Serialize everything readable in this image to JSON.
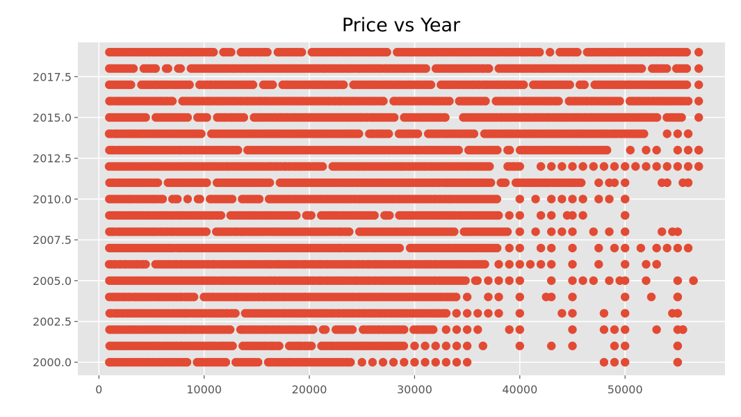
{
  "chart_data": {
    "type": "scatter",
    "title": "Price vs Year",
    "xlabel": "",
    "ylabel": "",
    "xlim": [
      -2000,
      59500
    ],
    "ylim": [
      1999.2,
      2019.6
    ],
    "grid": true,
    "x_ticks": [
      0,
      10000,
      20000,
      30000,
      40000,
      50000
    ],
    "x_tick_labels": [
      "0",
      "10000",
      "20000",
      "30000",
      "40000",
      "50000"
    ],
    "y_ticks": [
      2000.0,
      2002.5,
      2005.0,
      2007.5,
      2010.0,
      2012.5,
      2015.0,
      2017.5
    ],
    "y_tick_labels": [
      "2000.0",
      "2002.5",
      "2005.0",
      "2007.5",
      "2010.0",
      "2012.5",
      "2015.0",
      "2017.5"
    ],
    "colors": {
      "marker": "#E24A33",
      "plot_background": "#E5E5E5",
      "grid": "#FFFFFF"
    },
    "rows": [
      {
        "year": 2019,
        "x_min": 1000,
        "x_max": 57000,
        "solid_to": 56000,
        "extra_x": []
      },
      {
        "year": 2018,
        "x_min": 1000,
        "x_max": 57000,
        "solid_to": 56000,
        "extra_x": []
      },
      {
        "year": 2017,
        "x_min": 1000,
        "x_max": 57000,
        "solid_to": 56000,
        "extra_x": []
      },
      {
        "year": 2016,
        "x_min": 1000,
        "x_max": 57000,
        "solid_to": 56000,
        "extra_x": []
      },
      {
        "year": 2015,
        "x_min": 1000,
        "x_max": 57000,
        "solid_to": 56000,
        "extra_x": []
      },
      {
        "year": 2014,
        "x_min": 1000,
        "x_max": 56000,
        "solid_to": 52000,
        "extra_x": [
          54000,
          55000,
          56000
        ]
      },
      {
        "year": 2013,
        "x_min": 1000,
        "x_max": 57000,
        "solid_to": 48500,
        "extra_x": [
          50500,
          52000,
          53000,
          55000,
          56000,
          57000
        ]
      },
      {
        "year": 2012,
        "x_min": 1000,
        "x_max": 57000,
        "solid_to": 40000,
        "extra_x": [
          42000,
          43000,
          44000,
          45000,
          46000,
          47000,
          48000,
          49000,
          50000,
          51000,
          52000,
          53000,
          54000,
          55000,
          56000,
          57000
        ]
      },
      {
        "year": 2011,
        "x_min": 1000,
        "x_max": 56000,
        "solid_to": 46000,
        "extra_x": [
          47500,
          48500,
          49000,
          50000,
          53500,
          54000,
          55500,
          56000
        ]
      },
      {
        "year": 2010,
        "x_min": 1000,
        "x_max": 50000,
        "solid_to": 38000,
        "extra_x": [
          40000,
          41500,
          43000,
          44000,
          45000,
          46000,
          47500,
          48500,
          50000
        ]
      },
      {
        "year": 2009,
        "x_min": 1000,
        "x_max": 50000,
        "solid_to": 38000,
        "extra_x": [
          39000,
          40000,
          42000,
          43000,
          44500,
          45000,
          46000,
          50000
        ]
      },
      {
        "year": 2008,
        "x_min": 1000,
        "x_max": 55000,
        "solid_to": 39000,
        "extra_x": [
          40000,
          41500,
          43000,
          44000,
          45000,
          47000,
          48500,
          50000,
          53500,
          54500
        ]
      },
      {
        "year": 2007,
        "x_min": 1000,
        "x_max": 56000,
        "solid_to": 38000,
        "extra_x": [
          39000,
          40000,
          42000,
          43000,
          45000,
          47500,
          49000,
          50000,
          51500,
          53000,
          54000,
          55000,
          56000
        ]
      },
      {
        "year": 2006,
        "x_min": 1000,
        "x_max": 53000,
        "solid_to": 37000,
        "extra_x": [
          38000,
          39000,
          40000,
          41000,
          42000,
          43000,
          45000,
          47500,
          50000,
          52000,
          53000
        ]
      },
      {
        "year": 2005,
        "x_min": 1000,
        "x_max": 56500,
        "solid_to": 36000,
        "extra_x": [
          37000,
          38000,
          39000,
          40000,
          43000,
          45000,
          46000,
          47000,
          48500,
          49500,
          50000,
          52000,
          55000,
          56500
        ]
      },
      {
        "year": 2004,
        "x_min": 1000,
        "x_max": 55000,
        "solid_to": 34000,
        "extra_x": [
          35000,
          37000,
          38000,
          40000,
          42500,
          43000,
          45000,
          50000,
          52500,
          55000
        ]
      },
      {
        "year": 2003,
        "x_min": 1000,
        "x_max": 55000,
        "solid_to": 34000,
        "extra_x": [
          35000,
          36000,
          37000,
          38000,
          40000,
          44000,
          45000,
          48000,
          50000,
          54500,
          55000
        ]
      },
      {
        "year": 2002,
        "x_min": 1000,
        "x_max": 55500,
        "solid_to": 32000,
        "extra_x": [
          33000,
          34000,
          35000,
          36000,
          39000,
          40000,
          45000,
          48000,
          49000,
          50000,
          53000,
          55000,
          55500
        ]
      },
      {
        "year": 2001,
        "x_min": 1000,
        "x_max": 55000,
        "solid_to": 29000,
        "extra_x": [
          30000,
          31000,
          32000,
          33000,
          34000,
          35000,
          36500,
          40000,
          43000,
          45000,
          49000,
          50000,
          55000
        ]
      },
      {
        "year": 2000,
        "x_min": 1000,
        "x_max": 55000,
        "solid_to": 24000,
        "extra_x": [
          25000,
          26000,
          27000,
          28000,
          29000,
          30000,
          31000,
          32000,
          33000,
          34000,
          35000,
          48000,
          49000,
          50000,
          55000
        ]
      }
    ]
  }
}
